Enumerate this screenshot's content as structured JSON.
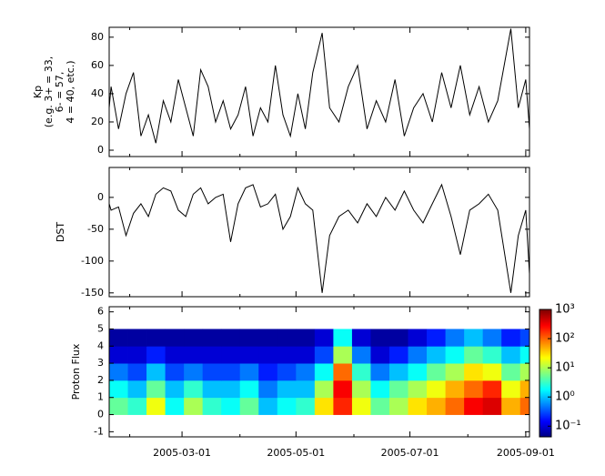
{
  "chart_data": [
    {
      "type": "line",
      "ylabel": [
        "Kp",
        "(e.g. 3+ = 33,",
        "6- = 57,",
        "4 = 40, etc.)"
      ],
      "color": "#000000",
      "xlim": [
        "2005-01-21",
        "2005-09-03"
      ],
      "x": [
        "2005-01-21",
        "2005-01-22",
        "2005-01-26",
        "2005-01-30",
        "2005-02-03",
        "2005-02-07",
        "2005-02-11",
        "2005-02-15",
        "2005-02-19",
        "2005-02-23",
        "2005-02-27",
        "2005-03-03",
        "2005-03-07",
        "2005-03-11",
        "2005-03-15",
        "2005-03-19",
        "2005-03-23",
        "2005-03-27",
        "2005-03-31",
        "2005-04-04",
        "2005-04-08",
        "2005-04-12",
        "2005-04-16",
        "2005-04-20",
        "2005-04-24",
        "2005-04-28",
        "2005-05-02",
        "2005-05-06",
        "2005-05-10",
        "2005-05-15",
        "2005-05-19",
        "2005-05-24",
        "2005-05-29",
        "2005-06-03",
        "2005-06-08",
        "2005-06-13",
        "2005-06-18",
        "2005-06-23",
        "2005-06-28",
        "2005-07-03",
        "2005-07-08",
        "2005-07-13",
        "2005-07-18",
        "2005-07-23",
        "2005-07-28",
        "2005-08-02",
        "2005-08-07",
        "2005-08-12",
        "2005-08-17",
        "2005-08-24",
        "2005-08-28",
        "2005-09-01",
        "2005-09-03"
      ],
      "values": [
        30,
        45,
        15,
        40,
        55,
        10,
        25,
        5,
        35,
        20,
        50,
        30,
        10,
        57,
        45,
        20,
        35,
        15,
        25,
        45,
        10,
        30,
        20,
        60,
        25,
        10,
        40,
        15,
        55,
        83,
        30,
        20,
        45,
        60,
        15,
        35,
        20,
        50,
        10,
        30,
        40,
        20,
        55,
        30,
        60,
        25,
        45,
        20,
        35,
        86,
        30,
        50,
        15
      ],
      "ylim": [
        -4.5,
        87
      ],
      "yticks": [
        0,
        20,
        40,
        60,
        80
      ]
    },
    {
      "type": "line",
      "ylabel": [
        "DST"
      ],
      "color": "#000000",
      "xlim": [
        "2005-01-21",
        "2005-09-03"
      ],
      "x": [
        "2005-01-21",
        "2005-01-22",
        "2005-01-26",
        "2005-01-30",
        "2005-02-03",
        "2005-02-07",
        "2005-02-11",
        "2005-02-15",
        "2005-02-19",
        "2005-02-23",
        "2005-02-27",
        "2005-03-03",
        "2005-03-07",
        "2005-03-11",
        "2005-03-15",
        "2005-03-19",
        "2005-03-23",
        "2005-03-27",
        "2005-03-31",
        "2005-04-04",
        "2005-04-08",
        "2005-04-12",
        "2005-04-16",
        "2005-04-20",
        "2005-04-24",
        "2005-04-28",
        "2005-05-02",
        "2005-05-06",
        "2005-05-10",
        "2005-05-15",
        "2005-05-19",
        "2005-05-24",
        "2005-05-29",
        "2005-06-03",
        "2005-06-08",
        "2005-06-13",
        "2005-06-18",
        "2005-06-23",
        "2005-06-28",
        "2005-07-03",
        "2005-07-08",
        "2005-07-13",
        "2005-07-18",
        "2005-07-23",
        "2005-07-28",
        "2005-08-02",
        "2005-08-07",
        "2005-08-12",
        "2005-08-17",
        "2005-08-24",
        "2005-08-28",
        "2005-09-01",
        "2005-09-03"
      ],
      "values": [
        -10,
        -20,
        -15,
        -60,
        -25,
        -10,
        -30,
        5,
        15,
        10,
        -20,
        -30,
        5,
        15,
        -10,
        0,
        5,
        -70,
        -10,
        15,
        20,
        -15,
        -10,
        5,
        -50,
        -30,
        15,
        -10,
        -20,
        -150,
        -60,
        -30,
        -20,
        -40,
        -10,
        -30,
        0,
        -20,
        10,
        -20,
        -40,
        -10,
        20,
        -30,
        -90,
        -20,
        -10,
        5,
        -20,
        -150,
        -60,
        -20,
        -120
      ],
      "ylim": [
        -156,
        47
      ],
      "yticks": [
        -150,
        -100,
        -50,
        0
      ]
    },
    {
      "type": "heatmap",
      "ylabel": [
        "Proton Flux"
      ],
      "xlim": [
        "2005-01-21",
        "2005-09-03"
      ],
      "xticks": [
        "2005-03-01",
        "2005-05-01",
        "2005-07-01",
        "2005-09-01"
      ],
      "xticks_minor": [
        "2005-02-01",
        "2005-04-01",
        "2005-06-01",
        "2005-08-01"
      ],
      "x": [
        "2005-01-21",
        "2005-01-31",
        "2005-02-10",
        "2005-02-20",
        "2005-03-02",
        "2005-03-12",
        "2005-03-22",
        "2005-04-01",
        "2005-04-11",
        "2005-04-21",
        "2005-05-01",
        "2005-05-11",
        "2005-05-21",
        "2005-05-31",
        "2005-06-10",
        "2005-06-20",
        "2005-06-30",
        "2005-07-10",
        "2005-07-20",
        "2005-07-30",
        "2005-08-09",
        "2005-08-19",
        "2005-08-29",
        "2005-09-03"
      ],
      "ybins": [
        0,
        1,
        2,
        3,
        4,
        5
      ],
      "z": [
        [
          5,
          3,
          20,
          2,
          10,
          3,
          2,
          5,
          1,
          2,
          3,
          30,
          200,
          20,
          5,
          10,
          30,
          50,
          100,
          300,
          400,
          50,
          100
        ],
        [
          2,
          1,
          5,
          1,
          3,
          1,
          1,
          2,
          0.5,
          1,
          1,
          10,
          300,
          10,
          2,
          5,
          10,
          20,
          50,
          100,
          200,
          20,
          50
        ],
        [
          0.5,
          0.3,
          1,
          0.3,
          0.5,
          0.3,
          0.3,
          0.5,
          0.2,
          0.3,
          0.5,
          2,
          100,
          3,
          0.5,
          1,
          2,
          5,
          10,
          30,
          20,
          5,
          10
        ],
        [
          0.1,
          0.1,
          0.2,
          0.1,
          0.1,
          0.1,
          0.1,
          0.1,
          0.1,
          0.1,
          0.1,
          0.3,
          10,
          0.5,
          0.1,
          0.2,
          0.5,
          1,
          2,
          5,
          3,
          1,
          2
        ],
        [
          0.06,
          0.06,
          0.06,
          0.06,
          0.06,
          0.06,
          0.06,
          0.06,
          0.06,
          0.06,
          0.06,
          0.1,
          2,
          0.1,
          0.06,
          0.06,
          0.1,
          0.2,
          0.5,
          1,
          0.5,
          0.2,
          0.3
        ]
      ],
      "ylim": [
        -1.3,
        6.3
      ],
      "yticks": [
        -1,
        0,
        1,
        2,
        3,
        4,
        5,
        6
      ],
      "colorbar": {
        "lim": [
          0.043,
          1000
        ],
        "log": true,
        "colormap": "jet",
        "ticks": [
          {
            "value": 0.1,
            "label": "10⁻¹"
          },
          {
            "value": 1,
            "label": "10⁰"
          },
          {
            "value": 10,
            "label": "10¹"
          },
          {
            "value": 100,
            "label": "10²"
          },
          {
            "value": 1000,
            "label": "10³"
          }
        ]
      }
    }
  ]
}
